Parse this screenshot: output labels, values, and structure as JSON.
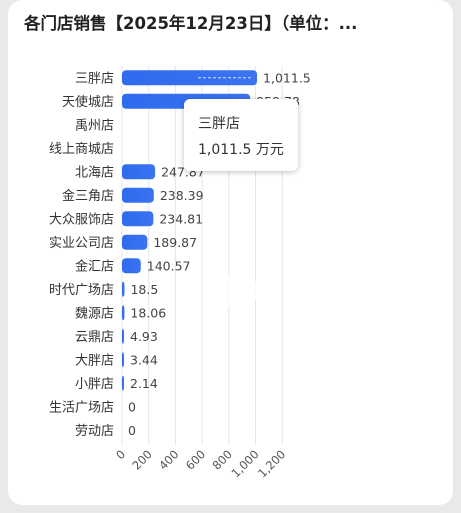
{
  "header": {
    "title": "各门店销售【2025年12月23日】（单位：..."
  },
  "tooltip": {
    "category": "三胖店",
    "value_text": "1,011.5 万元"
  },
  "chart_data": {
    "type": "bar",
    "orientation": "horizontal",
    "categories": [
      "三胖店",
      "天使城店",
      "禹州店",
      "线上商城店",
      "北海店",
      "金三角店",
      "大众服饰店",
      "实业公司店",
      "金汇店",
      "时代广场店",
      "魏源店",
      "云鼎店",
      "大胖店",
      "小胖店",
      "生活广场店",
      "劳动店"
    ],
    "values": [
      1011.5,
      959.78,
      null,
      null,
      247.87,
      238.39,
      234.81,
      189.87,
      140.57,
      18.5,
      18.06,
      4.93,
      3.44,
      2.14,
      0,
      0
    ],
    "value_labels": [
      "1,011.5",
      "959.78",
      "",
      "",
      "247.87",
      "238.39",
      "234.81",
      "189.87",
      "140.57",
      "18.5",
      "18.06",
      "4.93",
      "3.44",
      "2.14",
      "0",
      "0"
    ],
    "xlim": [
      0,
      1200
    ],
    "xticks": [
      0,
      200,
      400,
      600,
      800,
      1000,
      1200
    ],
    "xtick_labels": [
      "0",
      "200",
      "400",
      "600",
      "800",
      "1,000",
      "1,200"
    ],
    "grid": true,
    "bar_color": "#3b73f0",
    "title": "各门店销售【2025年12月23日】（单位：..."
  }
}
